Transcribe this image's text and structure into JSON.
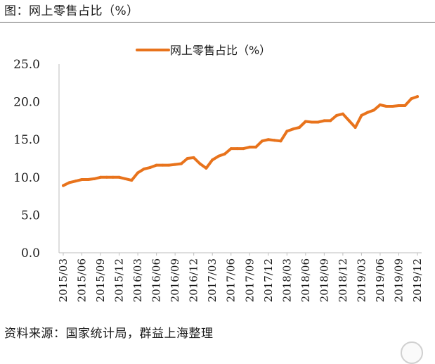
{
  "figure_title": "图：网上零售占比（%）",
  "source_note": "资料来源：国家统计局，群益上海整理",
  "colors": {
    "series": "#E8731C",
    "axis": "#bdbdbd",
    "text": "#1a1a1a"
  },
  "chart_data": {
    "type": "line",
    "title": "",
    "xlabel": "",
    "ylabel": "",
    "legend": {
      "position": "top-center",
      "entries": [
        "网上零售占比（%）"
      ]
    },
    "grid": false,
    "ylim": [
      0,
      25
    ],
    "y_ticks": [
      "0.0",
      "5.0",
      "10.0",
      "15.0",
      "20.0",
      "25.0"
    ],
    "x_tick_labels": [
      "2015/03",
      "2015/06",
      "2015/09",
      "2015/12",
      "2016/03",
      "2016/06",
      "2016/09",
      "2016/12",
      "2017/03",
      "2017/06",
      "2017/09",
      "2017/12",
      "2018/03",
      "2018/06",
      "2018/09",
      "2018/12",
      "2019/03",
      "2019/06",
      "2019/09",
      "2019/12"
    ],
    "x": [
      "2015/03",
      "2015/04",
      "2015/05",
      "2015/06",
      "2015/07",
      "2015/08",
      "2015/09",
      "2015/10",
      "2015/11",
      "2015/12",
      "2016/01",
      "2016/02",
      "2016/03",
      "2016/04",
      "2016/05",
      "2016/06",
      "2016/07",
      "2016/08",
      "2016/09",
      "2016/10",
      "2016/11",
      "2016/12",
      "2017/01",
      "2017/02",
      "2017/03",
      "2017/04",
      "2017/05",
      "2017/06",
      "2017/07",
      "2017/08",
      "2017/09",
      "2017/10",
      "2017/11",
      "2017/12",
      "2018/01",
      "2018/02",
      "2018/03",
      "2018/04",
      "2018/05",
      "2018/06",
      "2018/07",
      "2018/08",
      "2018/09",
      "2018/10",
      "2018/11",
      "2018/12",
      "2019/01",
      "2019/02",
      "2019/03",
      "2019/04",
      "2019/05",
      "2019/06",
      "2019/07",
      "2019/08",
      "2019/09",
      "2019/10",
      "2019/11",
      "2019/12"
    ],
    "series": [
      {
        "name": "网上零售占比（%）",
        "color": "#E8731C",
        "values": [
          8.9,
          9.3,
          9.5,
          9.7,
          9.7,
          9.8,
          10.0,
          10.0,
          10.0,
          10.0,
          9.8,
          9.6,
          10.6,
          11.1,
          11.3,
          11.6,
          11.6,
          11.6,
          11.7,
          11.8,
          12.5,
          12.6,
          11.8,
          11.2,
          12.3,
          12.8,
          13.1,
          13.8,
          13.8,
          13.8,
          14.0,
          14.0,
          14.8,
          15.0,
          14.9,
          14.8,
          16.1,
          16.4,
          16.6,
          17.4,
          17.3,
          17.3,
          17.5,
          17.5,
          18.2,
          18.4,
          17.5,
          16.6,
          18.2,
          18.6,
          18.9,
          19.6,
          19.4,
          19.4,
          19.5,
          19.5,
          20.4,
          20.7
        ]
      }
    ]
  }
}
